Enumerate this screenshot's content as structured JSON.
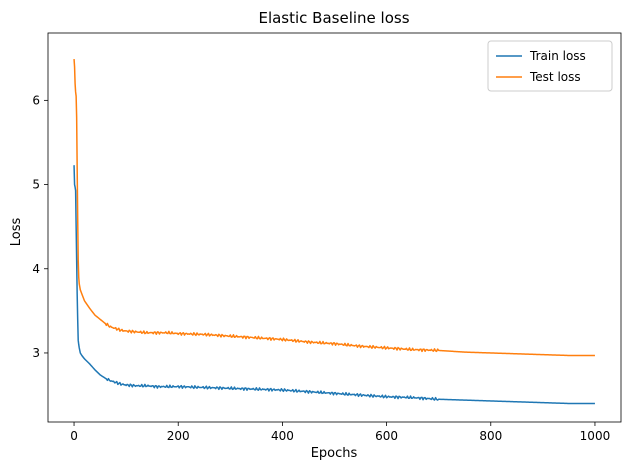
{
  "chart_data": {
    "type": "line",
    "title": "Elastic Baseline loss",
    "xlabel": "Epochs",
    "ylabel": "Loss",
    "xlim": [
      -50,
      1050
    ],
    "ylim": [
      2.18,
      6.8
    ],
    "xticks": [
      0,
      200,
      400,
      600,
      800,
      1000
    ],
    "yticks": [
      3,
      4,
      5,
      6
    ],
    "legend_position": "top-right",
    "grid": false,
    "series": [
      {
        "name": "Train loss",
        "color": "#1f77b4",
        "x": [
          0,
          1,
          2,
          3,
          4,
          5,
          6,
          7,
          8,
          9,
          10,
          12,
          15,
          20,
          30,
          40,
          50,
          60,
          70,
          80,
          90,
          100,
          120,
          140,
          160,
          180,
          200,
          250,
          300,
          350,
          400,
          450,
          500,
          550,
          600,
          650,
          700,
          750,
          800,
          850,
          900,
          950,
          1000
        ],
        "y": [
          5.23,
          5.0,
          4.97,
          4.93,
          4.5,
          4.1,
          3.7,
          3.4,
          3.15,
          3.1,
          3.06,
          3.0,
          2.97,
          2.93,
          2.87,
          2.8,
          2.74,
          2.7,
          2.67,
          2.65,
          2.63,
          2.62,
          2.61,
          2.61,
          2.6,
          2.6,
          2.6,
          2.59,
          2.58,
          2.57,
          2.56,
          2.54,
          2.52,
          2.5,
          2.48,
          2.47,
          2.45,
          2.44,
          2.43,
          2.42,
          2.41,
          2.4,
          2.4
        ]
      },
      {
        "name": "Test loss",
        "color": "#ff7f0e",
        "x": [
          0,
          1,
          2,
          3,
          4,
          5,
          6,
          7,
          8,
          9,
          10,
          12,
          15,
          20,
          30,
          40,
          50,
          60,
          70,
          80,
          90,
          100,
          120,
          140,
          160,
          180,
          200,
          250,
          300,
          350,
          400,
          450,
          500,
          550,
          600,
          650,
          700,
          750,
          800,
          850,
          900,
          950,
          1000
        ],
        "y": [
          6.49,
          6.4,
          6.2,
          6.1,
          6.05,
          5.8,
          5.2,
          4.6,
          4.1,
          3.9,
          3.82,
          3.75,
          3.7,
          3.62,
          3.53,
          3.45,
          3.4,
          3.35,
          3.31,
          3.29,
          3.27,
          3.26,
          3.25,
          3.24,
          3.24,
          3.24,
          3.23,
          3.22,
          3.2,
          3.18,
          3.16,
          3.13,
          3.11,
          3.08,
          3.06,
          3.04,
          3.03,
          3.01,
          3.0,
          2.99,
          2.98,
          2.97,
          2.97
        ]
      }
    ]
  }
}
